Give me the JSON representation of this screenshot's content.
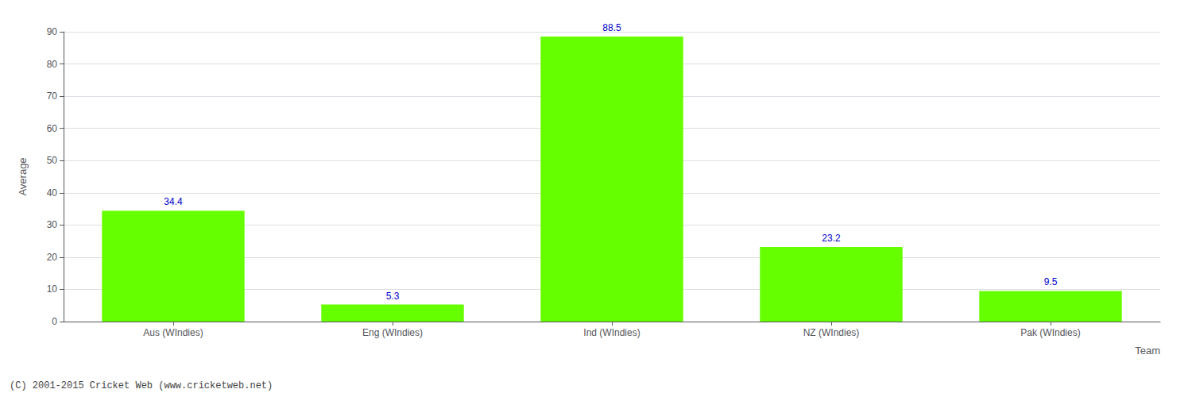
{
  "chart_data": {
    "type": "bar",
    "categories": [
      "Aus (WIndies)",
      "Eng (WIndies)",
      "Ind (WIndies)",
      "NZ (WIndies)",
      "Pak (WIndies)"
    ],
    "values": [
      34.4,
      5.3,
      88.5,
      23.2,
      9.5
    ],
    "color": "#66ff00",
    "xlabel": "Team",
    "ylabel": "Average",
    "ylim": [
      0,
      90
    ],
    "yticks": [
      0,
      10,
      20,
      30,
      40,
      50,
      60,
      70,
      80,
      90
    ],
    "grid": true,
    "data_labels": true,
    "annotations": [
      "(C) 2001-2015 Cricket Web (www.cricketweb.net)"
    ]
  }
}
